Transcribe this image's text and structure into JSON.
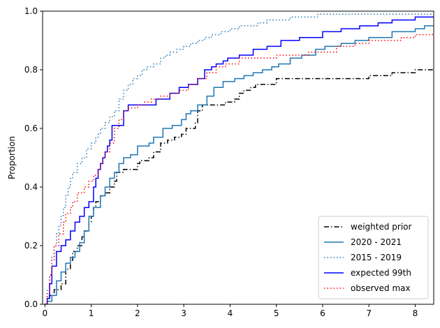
{
  "chart_data": {
    "type": "line",
    "title": "",
    "xlabel": "",
    "ylabel": "Proportion",
    "xlim": [
      -0.05,
      8.4
    ],
    "ylim": [
      0,
      1
    ],
    "xticks": [
      0,
      1,
      2,
      3,
      4,
      5,
      6,
      7,
      8
    ],
    "yticks": [
      0.0,
      0.2,
      0.4,
      0.6,
      0.8,
      1.0
    ],
    "ytick_labels": [
      "0.0",
      "0.2",
      "0.4",
      "0.6",
      "0.8",
      "1.0"
    ],
    "grid": false,
    "legend_position": "lower-right",
    "series": [
      {
        "name": "weighted prior",
        "color": "#000000",
        "dash": "dashdot",
        "step": true,
        "x": [
          0.05,
          0.1,
          0.2,
          0.35,
          0.45,
          0.55,
          0.6,
          0.7,
          0.8,
          0.85,
          0.95,
          1.0,
          1.05,
          1.1,
          1.2,
          1.3,
          1.4,
          1.5,
          1.55,
          1.7,
          1.85,
          2.0,
          2.05,
          2.25,
          2.35,
          2.5,
          2.65,
          2.8,
          2.95,
          3.05,
          3.25,
          3.3,
          3.4,
          3.6,
          3.8,
          3.9,
          4.1,
          4.2,
          4.3,
          4.45,
          4.55,
          4.65,
          5.0,
          7.0,
          7.5,
          8.0,
          8.2
        ],
        "y": [
          0.02,
          0.03,
          0.05,
          0.07,
          0.12,
          0.15,
          0.18,
          0.2,
          0.23,
          0.25,
          0.28,
          0.3,
          0.33,
          0.35,
          0.37,
          0.38,
          0.4,
          0.42,
          0.45,
          0.46,
          0.46,
          0.48,
          0.49,
          0.5,
          0.52,
          0.55,
          0.56,
          0.57,
          0.58,
          0.6,
          0.62,
          0.66,
          0.68,
          0.68,
          0.68,
          0.69,
          0.7,
          0.72,
          0.73,
          0.74,
          0.75,
          0.75,
          0.77,
          0.78,
          0.79,
          0.8,
          0.8
        ]
      },
      {
        "name": "2020 - 2021",
        "color": "#1f77b4",
        "dash": "solid",
        "step": true,
        "x": [
          0.05,
          0.15,
          0.25,
          0.35,
          0.45,
          0.55,
          0.65,
          0.75,
          0.85,
          0.95,
          1.05,
          1.2,
          1.3,
          1.4,
          1.5,
          1.6,
          1.7,
          1.85,
          2.0,
          2.25,
          2.35,
          2.55,
          2.75,
          2.95,
          3.05,
          3.15,
          3.3,
          3.5,
          3.65,
          3.85,
          4.1,
          4.3,
          4.5,
          4.7,
          4.9,
          5.05,
          5.3,
          5.55,
          5.85,
          6.05,
          6.4,
          6.7,
          7.0,
          7.5,
          8.0,
          8.2
        ],
        "y": [
          0.01,
          0.03,
          0.08,
          0.11,
          0.14,
          0.16,
          0.18,
          0.21,
          0.25,
          0.3,
          0.33,
          0.37,
          0.4,
          0.43,
          0.45,
          0.48,
          0.5,
          0.51,
          0.54,
          0.55,
          0.57,
          0.6,
          0.61,
          0.63,
          0.65,
          0.66,
          0.68,
          0.71,
          0.74,
          0.76,
          0.77,
          0.78,
          0.79,
          0.8,
          0.81,
          0.82,
          0.84,
          0.85,
          0.87,
          0.88,
          0.89,
          0.9,
          0.91,
          0.93,
          0.94,
          0.95
        ]
      },
      {
        "name": "2015 - 2019",
        "color": "#1f77b4",
        "dash": "dotted",
        "step": true,
        "x": [
          0.05,
          0.1,
          0.15,
          0.2,
          0.25,
          0.3,
          0.35,
          0.4,
          0.45,
          0.5,
          0.55,
          0.6,
          0.7,
          0.8,
          0.9,
          1.0,
          1.1,
          1.15,
          1.2,
          1.3,
          1.4,
          1.5,
          1.6,
          1.7,
          1.8,
          1.9,
          2.0,
          2.1,
          2.2,
          2.35,
          2.5,
          2.6,
          2.7,
          2.85,
          3.0,
          3.15,
          3.3,
          3.45,
          3.6,
          3.8,
          4.0,
          4.2,
          4.4,
          4.6,
          4.8,
          5.0,
          5.3,
          5.6,
          5.9,
          6.2,
          7.0,
          7.8
        ],
        "y": [
          0.05,
          0.1,
          0.16,
          0.2,
          0.24,
          0.27,
          0.3,
          0.33,
          0.37,
          0.4,
          0.43,
          0.45,
          0.48,
          0.5,
          0.53,
          0.55,
          0.57,
          0.58,
          0.6,
          0.62,
          0.64,
          0.66,
          0.7,
          0.73,
          0.75,
          0.77,
          0.78,
          0.8,
          0.81,
          0.82,
          0.84,
          0.85,
          0.86,
          0.87,
          0.88,
          0.89,
          0.9,
          0.91,
          0.92,
          0.93,
          0.94,
          0.95,
          0.95,
          0.96,
          0.97,
          0.97,
          0.98,
          0.98,
          0.99,
          0.99,
          0.99,
          0.99
        ]
      },
      {
        "name": "expected 99th",
        "color": "#0000ff",
        "dash": "solid",
        "step": true,
        "x": [
          0.05,
          0.1,
          0.15,
          0.25,
          0.35,
          0.45,
          0.55,
          0.65,
          0.75,
          0.85,
          0.95,
          1.05,
          1.1,
          1.15,
          1.2,
          1.25,
          1.3,
          1.35,
          1.4,
          1.45,
          1.7,
          1.8,
          2.0,
          2.4,
          2.7,
          2.9,
          3.1,
          3.3,
          3.45,
          3.6,
          3.7,
          3.85,
          3.95,
          4.2,
          4.5,
          4.8,
          5.1,
          5.5,
          6.0,
          6.4,
          6.8,
          7.2,
          7.5,
          8.0
        ],
        "y": [
          0.02,
          0.07,
          0.13,
          0.18,
          0.2,
          0.22,
          0.25,
          0.28,
          0.3,
          0.33,
          0.35,
          0.4,
          0.43,
          0.46,
          0.48,
          0.5,
          0.52,
          0.54,
          0.56,
          0.61,
          0.66,
          0.68,
          0.68,
          0.7,
          0.72,
          0.74,
          0.75,
          0.77,
          0.8,
          0.81,
          0.82,
          0.83,
          0.84,
          0.85,
          0.87,
          0.88,
          0.9,
          0.91,
          0.93,
          0.94,
          0.95,
          0.96,
          0.97,
          0.98
        ]
      },
      {
        "name": "observed max",
        "color": "#ff0000",
        "dash": "dotted",
        "step": true,
        "x": [
          0.05,
          0.1,
          0.15,
          0.2,
          0.3,
          0.4,
          0.45,
          0.55,
          0.6,
          0.7,
          0.85,
          0.95,
          1.05,
          1.15,
          1.2,
          1.25,
          1.3,
          1.4,
          1.5,
          1.6,
          1.7,
          1.8,
          2.0,
          2.15,
          2.3,
          2.5,
          2.7,
          2.9,
          3.1,
          3.3,
          3.5,
          3.7,
          3.9,
          4.2,
          4.5,
          4.8,
          5.0,
          5.4,
          5.7,
          6.0,
          6.3,
          6.7,
          7.0,
          7.3,
          7.7,
          8.0
        ],
        "y": [
          0.04,
          0.1,
          0.15,
          0.2,
          0.24,
          0.28,
          0.31,
          0.33,
          0.35,
          0.38,
          0.4,
          0.42,
          0.44,
          0.46,
          0.48,
          0.5,
          0.52,
          0.55,
          0.6,
          0.63,
          0.66,
          0.67,
          0.68,
          0.69,
          0.7,
          0.71,
          0.72,
          0.73,
          0.75,
          0.77,
          0.79,
          0.81,
          0.82,
          0.84,
          0.84,
          0.84,
          0.85,
          0.85,
          0.86,
          0.86,
          0.88,
          0.89,
          0.9,
          0.9,
          0.91,
          0.92
        ]
      }
    ]
  }
}
